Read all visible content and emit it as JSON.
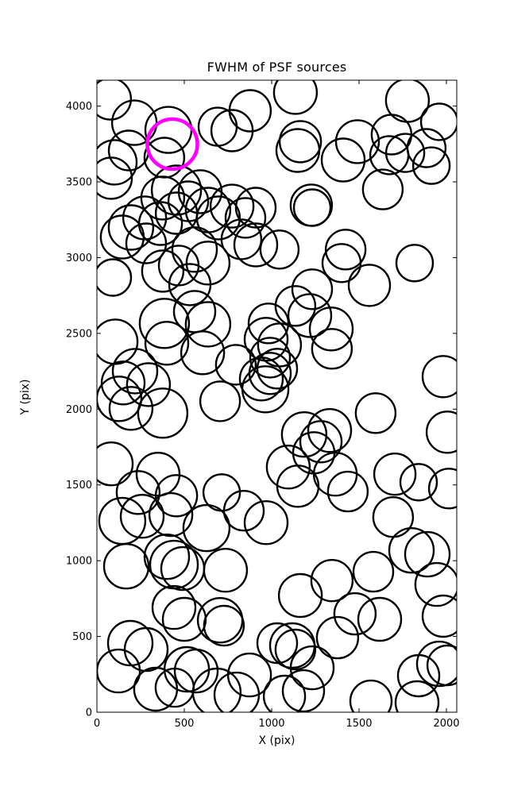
{
  "chart_data": {
    "type": "scatter",
    "title": "FWHM of PSF sources",
    "xlabel": "X (pix)",
    "ylabel": "Y (pix)",
    "xlim": [
      0,
      2059
    ],
    "ylim": [
      0,
      4171
    ],
    "xticks": [
      0,
      500,
      1000,
      1500,
      2000
    ],
    "yticks": [
      0,
      500,
      1000,
      1500,
      2000,
      2500,
      3000,
      3500,
      4000
    ],
    "grid": false,
    "legend": "none",
    "marker_style": "open-circle",
    "circle_color": "#000000",
    "circle_line_width": 2.4,
    "highlight_color": "#ff00ff",
    "highlight_line_width": 4.6,
    "highlight_point": [
      432,
      3749,
      31.5
    ],
    "points": [
      [
        77,
        4047,
        26
      ],
      [
        214,
        3890,
        28
      ],
      [
        409,
        3843,
        29
      ],
      [
        691,
        3864,
        24
      ],
      [
        773,
        3838,
        26
      ],
      [
        877,
        3969,
        26
      ],
      [
        182,
        3707,
        25
      ],
      [
        100,
        3629,
        28
      ],
      [
        386,
        3660,
        25
      ],
      [
        455,
        3445,
        31
      ],
      [
        82,
        3524,
        26
      ],
      [
        377,
        3393,
        27
      ],
      [
        273,
        3262,
        27
      ],
      [
        195,
        3199,
        28
      ],
      [
        145,
        3136,
        27
      ],
      [
        282,
        3094,
        25
      ],
      [
        364,
        3225,
        27
      ],
      [
        455,
        3293,
        26
      ],
      [
        523,
        3372,
        25
      ],
      [
        591,
        3435,
        27
      ],
      [
        636,
        3314,
        28
      ],
      [
        695,
        3262,
        27
      ],
      [
        773,
        3340,
        27
      ],
      [
        850,
        3262,
        25
      ],
      [
        909,
        3330,
        25
      ],
      [
        909,
        3084,
        27
      ],
      [
        827,
        3121,
        25
      ],
      [
        559,
        3053,
        28
      ],
      [
        636,
        2964,
        27
      ],
      [
        468,
        2948,
        25
      ],
      [
        377,
        2911,
        26
      ],
      [
        91,
        2869,
        23
      ],
      [
        532,
        2822,
        26
      ],
      [
        1136,
        4090,
        27
      ],
      [
        1777,
        4037,
        27
      ],
      [
        1959,
        3896,
        23
      ],
      [
        1686,
        3812,
        25
      ],
      [
        1491,
        3765,
        27
      ],
      [
        1164,
        3765,
        26
      ],
      [
        1150,
        3707,
        27
      ],
      [
        1409,
        3644,
        27
      ],
      [
        1673,
        3676,
        24
      ],
      [
        1764,
        3691,
        24
      ],
      [
        1886,
        3723,
        24
      ],
      [
        1914,
        3607,
        23
      ],
      [
        1636,
        3450,
        25
      ],
      [
        1227,
        3346,
        26
      ],
      [
        1232,
        3330,
        23
      ],
      [
        1423,
        3053,
        25
      ],
      [
        1400,
        2964,
        24
      ],
      [
        1045,
        3053,
        24
      ],
      [
        1818,
        2964,
        23
      ],
      [
        1559,
        2817,
        26
      ],
      [
        1232,
        2791,
        25
      ],
      [
        105,
        2445,
        28
      ],
      [
        386,
        2566,
        31
      ],
      [
        400,
        2435,
        27
      ],
      [
        559,
        2644,
        26
      ],
      [
        636,
        2560,
        28
      ],
      [
        605,
        2372,
        27
      ],
      [
        795,
        2293,
        25
      ],
      [
        968,
        2461,
        27
      ],
      [
        991,
        2340,
        25
      ],
      [
        982,
        2566,
        25
      ],
      [
        1045,
        2424,
        27
      ],
      [
        941,
        2199,
        27
      ],
      [
        1032,
        2267,
        25
      ],
      [
        991,
        2236,
        26
      ],
      [
        964,
        2131,
        29
      ],
      [
        218,
        2251,
        28
      ],
      [
        150,
        2173,
        27
      ],
      [
        127,
        2068,
        28
      ],
      [
        195,
        2005,
        27
      ],
      [
        295,
        2162,
        27
      ],
      [
        377,
        1974,
        31
      ],
      [
        705,
        2052,
        25
      ],
      [
        82,
        1639,
        27
      ],
      [
        350,
        1571,
        27
      ],
      [
        236,
        1450,
        27
      ],
      [
        455,
        1429,
        26
      ],
      [
        714,
        1450,
        23
      ],
      [
        1218,
        2618,
        27
      ],
      [
        1341,
        2529,
        27
      ],
      [
        1345,
        2398,
        25
      ],
      [
        1136,
        2681,
        25
      ],
      [
        1982,
        2215,
        26
      ],
      [
        2005,
        1848,
        26
      ],
      [
        1595,
        1974,
        25
      ],
      [
        1186,
        1833,
        28
      ],
      [
        1332,
        1859,
        27
      ],
      [
        1282,
        1785,
        26
      ],
      [
        1241,
        1712,
        26
      ],
      [
        1095,
        1618,
        27
      ],
      [
        1364,
        1571,
        27
      ],
      [
        1705,
        1571,
        26
      ],
      [
        1150,
        1492,
        26
      ],
      [
        1436,
        1456,
        25
      ],
      [
        1841,
        1518,
        23
      ],
      [
        2014,
        1476,
        25
      ],
      [
        145,
        1262,
        29
      ],
      [
        259,
        1293,
        27
      ],
      [
        423,
        1304,
        27
      ],
      [
        627,
        1215,
        29
      ],
      [
        841,
        1330,
        25
      ],
      [
        968,
        1251,
        27
      ],
      [
        168,
        963,
        28
      ],
      [
        400,
        1026,
        28
      ],
      [
        441,
        974,
        30
      ],
      [
        491,
        948,
        27
      ],
      [
        736,
        937,
        27
      ],
      [
        441,
        691,
        27
      ],
      [
        500,
        613,
        27
      ],
      [
        705,
        607,
        28
      ],
      [
        727,
        571,
        25
      ],
      [
        191,
        456,
        28
      ],
      [
        282,
        414,
        27
      ],
      [
        123,
        272,
        27
      ],
      [
        514,
        283,
        28
      ],
      [
        568,
        272,
        27
      ],
      [
        873,
        246,
        27
      ],
      [
        1032,
        456,
        25
      ],
      [
        686,
        131,
        30
      ],
      [
        800,
        115,
        28
      ],
      [
        336,
        152,
        27
      ],
      [
        445,
        162,
        24
      ],
      [
        1695,
        1288,
        25
      ],
      [
        1800,
        1068,
        28
      ],
      [
        1891,
        1042,
        28
      ],
      [
        1582,
        927,
        25
      ],
      [
        1345,
        869,
        26
      ],
      [
        1164,
        770,
        27
      ],
      [
        1945,
        843,
        27
      ],
      [
        1982,
        634,
        26
      ],
      [
        1477,
        649,
        26
      ],
      [
        1618,
        613,
        27
      ],
      [
        1377,
        492,
        26
      ],
      [
        1118,
        440,
        28
      ],
      [
        1136,
        414,
        25
      ],
      [
        1232,
        293,
        27
      ],
      [
        1182,
        141,
        26
      ],
      [
        1568,
        73,
        26
      ],
      [
        1841,
        241,
        26
      ],
      [
        1959,
        319,
        28
      ],
      [
        2005,
        309,
        25
      ],
      [
        1073,
        105,
        26
      ],
      [
        1832,
        63,
        27
      ]
    ]
  }
}
